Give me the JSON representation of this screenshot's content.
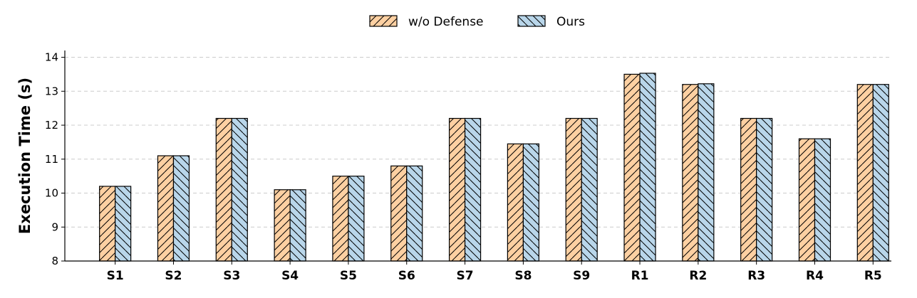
{
  "chart_data": {
    "type": "bar",
    "ylabel": "Execution Time (s)",
    "xlabel": "",
    "ylim": [
      8,
      14.2
    ],
    "yticks": [
      8,
      9,
      10,
      11,
      12,
      13,
      14
    ],
    "grid": "horizontal-dashed",
    "legend_position": "top-center",
    "categories": [
      "S1",
      "S2",
      "S3",
      "S4",
      "S5",
      "S6",
      "S7",
      "S8",
      "S9",
      "R1",
      "R2",
      "R3",
      "R4",
      "R5"
    ],
    "series": [
      {
        "name": "w/o Defense",
        "color": "#fdd0a2",
        "hatch": "forward-diagonal",
        "values": [
          10.2,
          11.1,
          12.2,
          10.1,
          10.5,
          10.8,
          12.2,
          11.45,
          12.2,
          13.5,
          13.2,
          12.2,
          11.6,
          13.2
        ]
      },
      {
        "name": "Ours",
        "color": "#b9d6ea",
        "hatch": "back-diagonal",
        "values": [
          10.2,
          11.1,
          12.2,
          10.1,
          10.5,
          10.8,
          12.2,
          11.45,
          12.2,
          13.53,
          13.22,
          12.2,
          11.6,
          13.2
        ]
      }
    ]
  }
}
